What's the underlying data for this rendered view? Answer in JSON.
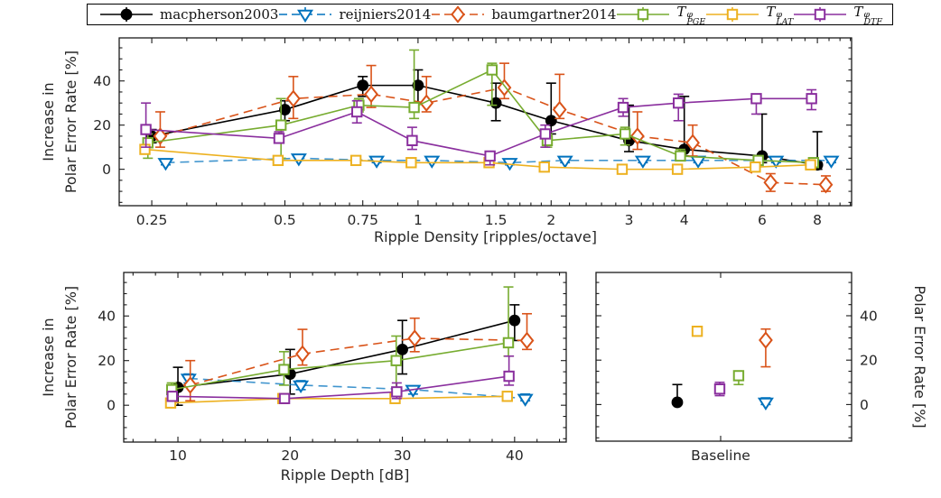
{
  "figure": {
    "legend": {
      "items": [
        {
          "label": "macpherson2003",
          "marker": "circle",
          "color": "#000000",
          "line": "solid"
        },
        {
          "label": "reijniers2014",
          "marker": "triangle-down",
          "color": "#0072BD",
          "line": "dashed"
        },
        {
          "label": "baumgartner2014",
          "marker": "diamond",
          "color": "#D95319",
          "line": "dashed"
        },
        {
          "label_base": "T",
          "label_sup": "φ",
          "label_sub": "PGE",
          "marker": "square",
          "color": "#77AC30",
          "line": "solid"
        },
        {
          "label_base": "T",
          "label_sup": "φ",
          "label_sub": "LAT",
          "marker": "square",
          "color": "#EDB120",
          "line": "solid"
        },
        {
          "label_base": "T",
          "label_sup": "φ",
          "label_sub": "DTF",
          "marker": "square",
          "color": "#8A2F9E",
          "line": "solid"
        }
      ]
    },
    "colors": {
      "macpherson2003": "#000000",
      "reijniers2014": "#0072BD",
      "baumgartner2014": "#D95319",
      "T_PGE": "#77AC30",
      "T_LAT": "#EDB120",
      "T_DTF": "#8A2F9E",
      "axis": "#1a1a1a",
      "text": "#262626"
    }
  },
  "chart_data": [
    {
      "id": "ripple_density",
      "type": "line",
      "xscale": "log",
      "xlabel": "Ripple Density [ripples/octave]",
      "ylabel_lines": [
        "Increase in",
        "Polar Error Rate [%]"
      ],
      "ylabel_side": "left",
      "xlim": [
        0.211,
        9.56
      ],
      "ylim": [
        -16.5,
        59.5
      ],
      "xticks": [
        0.25,
        0.5,
        0.75,
        1,
        1.5,
        2,
        3,
        4,
        6,
        8
      ],
      "xtick_labels": [
        "0.25",
        "0.5",
        "0.75",
        "1",
        "1.5",
        "2",
        "3",
        "4",
        "6",
        "8"
      ],
      "xminor": [
        0.3,
        0.35,
        0.4,
        0.45,
        0.55,
        0.6,
        0.65,
        0.7,
        0.8,
        0.9,
        1.1,
        1.2,
        1.3,
        1.4,
        1.6,
        1.7,
        1.8,
        1.9,
        2.2,
        2.4,
        2.6,
        2.8,
        3.2,
        3.4,
        3.6,
        3.8,
        4.5,
        5,
        5.5,
        6.5,
        7,
        7.5,
        8.5,
        9,
        9.5
      ],
      "yticks": [
        0,
        20,
        40
      ],
      "ytick_labels": [
        "0",
        "20",
        "40"
      ],
      "yminor_step": 5,
      "x": [
        0.25,
        0.5,
        0.75,
        1,
        1.5,
        2,
        3,
        4,
        6,
        8
      ],
      "series": [
        {
          "name": "macpherson2003",
          "marker": "circle",
          "color": "#000000",
          "line": "solid",
          "x_offset_factor": 1.0,
          "y": [
            15,
            27,
            38,
            38,
            30,
            22,
            13,
            9,
            6,
            2
          ],
          "err_lo": [
            12,
            22,
            33,
            30,
            22,
            16,
            8,
            6,
            3,
            0
          ],
          "err_hi": [
            18,
            31,
            42,
            45,
            39,
            39,
            29,
            33,
            25,
            17
          ]
        },
        {
          "name": "reijniers2014",
          "marker": "triangle-down",
          "color": "#0072BD",
          "line": "dashed",
          "x_offset_factor": 1.075,
          "y": [
            3,
            5,
            4,
            4,
            3,
            4,
            4,
            4,
            4,
            4
          ],
          "err_lo": [
            2,
            4,
            3,
            3,
            2,
            3,
            3,
            3,
            3,
            3
          ],
          "err_hi": [
            4,
            6,
            5,
            5,
            4,
            5,
            5,
            5,
            5,
            5
          ]
        },
        {
          "name": "baumgartner2014",
          "marker": "diamond",
          "color": "#D95319",
          "line": "dashed",
          "x_offset_factor": 1.045,
          "y": [
            15,
            32,
            34,
            30,
            37,
            27,
            15,
            12,
            -6,
            -7
          ],
          "err_lo": [
            10,
            23,
            28,
            26,
            32,
            23,
            9,
            6,
            -10,
            -10
          ],
          "err_hi": [
            26,
            42,
            47,
            42,
            48,
            43,
            26,
            20,
            -2,
            -3
          ]
        },
        {
          "name": "T_PGE",
          "marker": "square",
          "color": "#77AC30",
          "line": "solid",
          "x_offset_factor": 0.98,
          "y": [
            12,
            20,
            29,
            28,
            45,
            13,
            16,
            6,
            4,
            3
          ],
          "err_lo": [
            5,
            5,
            26,
            23,
            29,
            10,
            11,
            4,
            2,
            2
          ],
          "err_hi": [
            16,
            32,
            32,
            54,
            48,
            16,
            19,
            9,
            6,
            5
          ]
        },
        {
          "name": "T_LAT",
          "marker": "square",
          "color": "#EDB120",
          "line": "solid",
          "x_offset_factor": 0.965,
          "y": [
            9,
            4,
            4,
            3,
            3,
            1,
            0,
            0,
            1,
            2
          ],
          "err_lo": [
            8,
            3,
            3,
            2,
            2,
            0,
            -1,
            -1,
            0,
            1
          ],
          "err_hi": [
            11,
            5,
            5,
            4,
            4,
            2,
            1,
            1,
            2,
            3
          ]
        },
        {
          "name": "T_DTF",
          "marker": "square",
          "color": "#8A2F9E",
          "line": "solid",
          "x_offset_factor": 0.97,
          "y": [
            18,
            14,
            26,
            13,
            6,
            16,
            28,
            30,
            32,
            32
          ],
          "err_lo": [
            10,
            12,
            21,
            9,
            2,
            10,
            24,
            22,
            25,
            27
          ],
          "err_hi": [
            30,
            17,
            31,
            19,
            8,
            20,
            32,
            34,
            34,
            36
          ]
        }
      ]
    },
    {
      "id": "ripple_depth",
      "type": "line",
      "xscale": "linear",
      "xlabel": "Ripple Depth [dB]",
      "ylabel_lines": [
        "Increase in",
        "Polar Error Rate [%]"
      ],
      "ylabel_side": "left",
      "xlim": [
        5.17,
        44.6
      ],
      "ylim": [
        -16.5,
        59.5
      ],
      "xticks": [
        10,
        20,
        30,
        40
      ],
      "xtick_labels": [
        "10",
        "20",
        "30",
        "40"
      ],
      "xminor": [
        6,
        8,
        12,
        14,
        16,
        18,
        22,
        24,
        26,
        28,
        32,
        34,
        36,
        38,
        42,
        44
      ],
      "yticks": [
        0,
        20,
        40
      ],
      "ytick_labels": [
        "0",
        "20",
        "40"
      ],
      "yminor_step": 5,
      "x": [
        10,
        20,
        30,
        40
      ],
      "series": [
        {
          "name": "macpherson2003",
          "marker": "circle",
          "color": "#000000",
          "line": "solid",
          "x_offset": 0,
          "y": [
            8,
            14,
            25,
            38
          ],
          "err_lo": [
            0,
            5,
            14,
            29
          ],
          "err_hi": [
            17,
            25,
            38,
            45
          ]
        },
        {
          "name": "reijniers2014",
          "marker": "triangle-down",
          "color": "#0072BD",
          "line": "dashed",
          "x_offset": 0.95,
          "y": [
            12,
            9,
            7,
            3
          ],
          "err_lo": [
            10,
            7,
            5,
            2
          ],
          "err_hi": [
            14,
            11,
            8,
            5
          ]
        },
        {
          "name": "baumgartner2014",
          "marker": "diamond",
          "color": "#D95319",
          "line": "dashed",
          "x_offset": 1.1,
          "y": [
            9,
            23,
            30,
            29
          ],
          "err_lo": [
            2,
            18,
            24,
            25
          ],
          "err_hi": [
            20,
            34,
            39,
            41
          ]
        },
        {
          "name": "T_PGE",
          "marker": "square",
          "color": "#77AC30",
          "line": "solid",
          "x_offset": -0.55,
          "y": [
            7,
            16,
            20,
            28
          ],
          "err_lo": [
            4,
            9,
            8,
            22
          ],
          "err_hi": [
            10,
            24,
            31,
            53
          ]
        },
        {
          "name": "T_LAT",
          "marker": "square",
          "color": "#EDB120",
          "line": "solid",
          "x_offset": -0.65,
          "y": [
            1,
            3,
            3,
            4
          ],
          "err_lo": [
            0,
            2,
            2,
            3
          ],
          "err_hi": [
            2,
            4,
            4,
            5
          ]
        },
        {
          "name": "T_DTF",
          "marker": "square",
          "color": "#8A2F9E",
          "line": "solid",
          "x_offset": -0.5,
          "y": [
            4,
            3,
            6,
            13
          ],
          "err_lo": [
            2,
            1,
            3,
            9
          ],
          "err_hi": [
            5,
            4,
            10,
            22
          ]
        }
      ]
    },
    {
      "id": "baseline",
      "type": "points",
      "xscale": "category",
      "xlabel": "",
      "xtick_label": "Baseline",
      "xtick_frac": 0.4876,
      "ylabel_lines": [
        "Polar Error Rate [%]"
      ],
      "ylabel_side": "right",
      "ylim": [
        -16.5,
        59.5
      ],
      "yticks": [
        0,
        20,
        40
      ],
      "ytick_labels": [
        "0",
        "20",
        "40"
      ],
      "yminor_step": 5,
      "series": [
        {
          "name": "macpherson2003",
          "marker": "circle",
          "color": "#000000",
          "x_frac": 0.318,
          "y": 1,
          "err_lo": 1,
          "err_hi": 9
        },
        {
          "name": "reijniers2014",
          "marker": "triangle-down",
          "color": "#0072BD",
          "x_frac": 0.664,
          "y": 1,
          "err_lo": 0,
          "err_hi": 3
        },
        {
          "name": "baumgartner2014",
          "marker": "diamond",
          "color": "#D95319",
          "x_frac": 0.664,
          "y": 29,
          "err_lo": 17,
          "err_hi": 34
        },
        {
          "name": "T_PGE",
          "marker": "square",
          "color": "#77AC30",
          "x_frac": 0.558,
          "y": 13,
          "err_lo": 9,
          "err_hi": 15
        },
        {
          "name": "T_LAT",
          "marker": "square",
          "color": "#EDB120",
          "x_frac": 0.396,
          "y": 33,
          "err_lo": 31,
          "err_hi": 35
        },
        {
          "name": "T_DTF",
          "marker": "square",
          "color": "#8A2F9E",
          "x_frac": 0.484,
          "y": 7,
          "err_lo": 4,
          "err_hi": 10
        }
      ]
    }
  ]
}
